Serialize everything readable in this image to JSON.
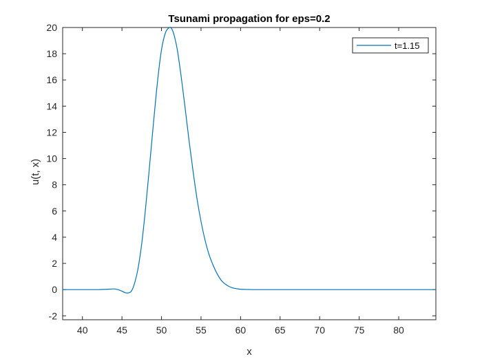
{
  "chart_data": {
    "type": "line",
    "title": "Tsunami propagation for eps=0.2",
    "xlabel": "x",
    "ylabel": "u(t, x)",
    "xlim": [
      37.5,
      84.7
    ],
    "ylim": [
      -2.3,
      20
    ],
    "xticks": [
      40,
      45,
      50,
      55,
      60,
      65,
      70,
      75,
      80
    ],
    "yticks": [
      -2,
      0,
      2,
      4,
      6,
      8,
      10,
      12,
      14,
      16,
      18,
      20
    ],
    "grid": false,
    "legend_position": "top-right",
    "line_color": "#0072BD",
    "series": [
      {
        "name": "t=1.15",
        "x": [
          37.5,
          40,
          42,
          43,
          44,
          44.5,
          45,
          45.5,
          46,
          46.3,
          46.6,
          47,
          47.5,
          48,
          48.5,
          49,
          49.5,
          50,
          50.5,
          51,
          51.3,
          51.6,
          52,
          52.5,
          53,
          53.5,
          54,
          54.5,
          55,
          55.5,
          56,
          56.5,
          57,
          57.5,
          58,
          58.5,
          59,
          59.5,
          60,
          61,
          62,
          65,
          70,
          75,
          80,
          84.7
        ],
        "y": [
          0,
          0,
          0,
          0.02,
          0.05,
          0,
          -0.12,
          -0.25,
          -0.22,
          0.0,
          0.5,
          1.5,
          3.5,
          6.3,
          9.5,
          12.8,
          15.9,
          18.3,
          19.6,
          20.0,
          19.9,
          19.4,
          18.3,
          16.2,
          13.8,
          11.3,
          9.0,
          6.9,
          5.2,
          3.8,
          2.7,
          1.9,
          1.25,
          0.75,
          0.45,
          0.25,
          0.13,
          0.07,
          0.03,
          0.01,
          0,
          0,
          0,
          0,
          0,
          0
        ]
      }
    ]
  }
}
